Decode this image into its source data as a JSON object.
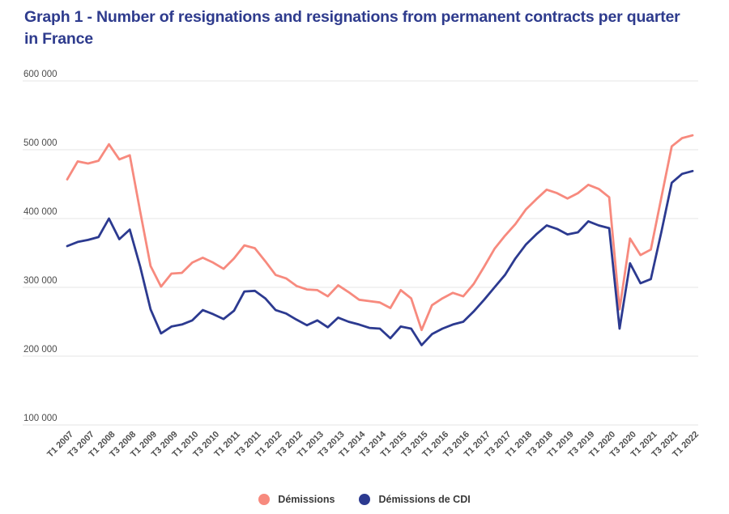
{
  "page": {
    "background": "#ffffff"
  },
  "chart": {
    "title": "Graph 1 - Number of resignations and resignations from permanent contracts per quarter in France",
    "title_color": "#2e3b8d"
  },
  "legend": {
    "items": [
      {
        "label": "Démissions",
        "color": "#f78a7e"
      },
      {
        "label": "Démissions de CDI",
        "color": "#2c3a90"
      }
    ]
  },
  "chart_data": {
    "type": "line",
    "title": "Graph 1 - Number of resignations and resignations from permanent contracts per quarter in France",
    "xlabel": "",
    "ylabel": "",
    "ylim": [
      100000,
      600000
    ],
    "grid": "horizontal",
    "gridline_color": "#e5e5e5",
    "legend_position": "bottom",
    "x_tick_every": 2,
    "x": [
      "T1 2007",
      "T2 2007",
      "T3 2007",
      "T4 2007",
      "T1 2008",
      "T2 2008",
      "T3 2008",
      "T4 2008",
      "T1 2009",
      "T2 2009",
      "T3 2009",
      "T4 2009",
      "T1 2010",
      "T2 2010",
      "T3 2010",
      "T4 2010",
      "T1 2011",
      "T2 2011",
      "T3 2011",
      "T4 2011",
      "T1 2012",
      "T2 2012",
      "T3 2012",
      "T4 2012",
      "T1 2013",
      "T2 2013",
      "T3 2013",
      "T4 2013",
      "T1 2014",
      "T2 2014",
      "T3 2014",
      "T4 2014",
      "T1 2015",
      "T2 2015",
      "T3 2015",
      "T4 2015",
      "T1 2016",
      "T2 2016",
      "T3 2016",
      "T4 2016",
      "T1 2017",
      "T2 2017",
      "T3 2017",
      "T4 2017",
      "T1 2018",
      "T2 2018",
      "T3 2018",
      "T4 2018",
      "T1 2019",
      "T2 2019",
      "T3 2019",
      "T4 2019",
      "T1 2020",
      "T2 2020",
      "T3 2020",
      "T4 2020",
      "T1 2021",
      "T2 2021",
      "T3 2021",
      "T4 2021",
      "T1 2022"
    ],
    "y_ticks": [
      {
        "value": 600000,
        "label": "600 000"
      },
      {
        "value": 500000,
        "label": "500 000"
      },
      {
        "value": 400000,
        "label": "400 000"
      },
      {
        "value": 300000,
        "label": "300 000"
      },
      {
        "value": 200000,
        "label": "200 000"
      },
      {
        "value": 100000,
        "label": "100 000"
      }
    ],
    "series": [
      {
        "name": "Démissions",
        "color": "#f78a7e",
        "values": [
          457000,
          483000,
          480000,
          484000,
          508000,
          486000,
          492000,
          410000,
          331000,
          301000,
          320000,
          321000,
          336000,
          343000,
          336000,
          327000,
          342000,
          361000,
          357000,
          338000,
          318000,
          313000,
          302000,
          297000,
          296000,
          287000,
          303000,
          293000,
          282000,
          280000,
          278000,
          270000,
          296000,
          284000,
          238000,
          274000,
          284000,
          292000,
          287000,
          305000,
          330000,
          356000,
          375000,
          392000,
          413000,
          428000,
          442000,
          437000,
          429000,
          437000,
          449000,
          443000,
          431000,
          268000,
          371000,
          347000,
          355000,
          430000,
          505000,
          517000,
          521000
        ]
      },
      {
        "name": "Démissions de CDI",
        "color": "#2c3a90",
        "values": [
          360000,
          366000,
          369000,
          373000,
          400000,
          370000,
          384000,
          330000,
          268000,
          233000,
          243000,
          246000,
          252000,
          267000,
          261000,
          254000,
          266000,
          294000,
          295000,
          284000,
          267000,
          262000,
          253000,
          245000,
          252000,
          242000,
          256000,
          250000,
          246000,
          241000,
          240000,
          226000,
          243000,
          240000,
          216000,
          232000,
          240000,
          246000,
          250000,
          265000,
          282000,
          300000,
          318000,
          342000,
          362000,
          377000,
          390000,
          385000,
          377000,
          380000,
          396000,
          390000,
          386000,
          240000,
          335000,
          306000,
          312000,
          380000,
          452000,
          465000,
          469000
        ]
      }
    ]
  }
}
